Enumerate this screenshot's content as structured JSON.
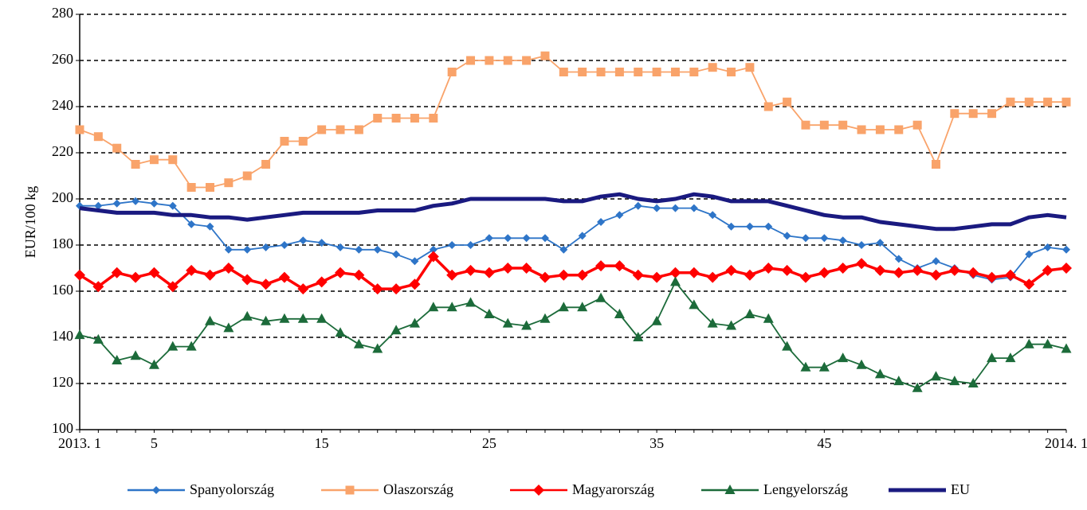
{
  "chart_data": {
    "type": "line",
    "y_label": "EUR/100 kg",
    "categories": [
      "2013. 1",
      null,
      null,
      null,
      "5",
      null,
      null,
      null,
      null,
      null,
      null,
      null,
      null,
      "15",
      null,
      null,
      null,
      null,
      null,
      null,
      null,
      null,
      "25",
      null,
      null,
      null,
      null,
      null,
      null,
      null,
      null,
      "35",
      null,
      null,
      null,
      null,
      null,
      null,
      null,
      null,
      "45",
      null,
      null,
      null,
      null,
      null,
      null,
      null,
      null,
      null,
      null,
      null,
      null,
      "2014. 1"
    ],
    "ylim": [
      100,
      280
    ],
    "yticks": [
      100,
      120,
      140,
      160,
      180,
      200,
      220,
      240,
      260,
      280
    ],
    "grid": true,
    "legend": "bottom",
    "series": [
      {
        "name": "Spanyolország",
        "color": "#2e75c8",
        "marker": "diamond",
        "values": [
          197,
          197,
          198,
          199,
          198,
          197,
          189,
          188,
          178,
          178,
          179,
          180,
          182,
          181,
          179,
          178,
          178,
          176,
          173,
          178,
          180,
          180,
          183,
          183,
          183,
          183,
          178,
          184,
          190,
          193,
          197,
          196,
          196,
          196,
          193,
          188,
          188,
          188,
          184,
          183,
          183,
          182,
          180,
          181,
          174,
          170,
          173,
          170,
          167,
          165,
          166,
          176,
          179,
          178
        ]
      },
      {
        "name": "Olaszország",
        "color": "#f9a36a",
        "marker": "square",
        "values": [
          230,
          227,
          222,
          215,
          217,
          217,
          205,
          205,
          207,
          210,
          215,
          225,
          225,
          230,
          230,
          230,
          235,
          235,
          235,
          235,
          255,
          260,
          260,
          260,
          260,
          262,
          255,
          255,
          255,
          255,
          255,
          255,
          255,
          255,
          257,
          255,
          257,
          240,
          242,
          232,
          232,
          232,
          230,
          230,
          230,
          232,
          215,
          237,
          237,
          237,
          242,
          242,
          242,
          242
        ]
      },
      {
        "name": "Magyarország",
        "color": "#ff0000",
        "marker": "bigdiamond",
        "values": [
          167,
          162,
          168,
          166,
          168,
          162,
          169,
          167,
          170,
          165,
          163,
          166,
          161,
          164,
          168,
          167,
          161,
          161,
          163,
          175,
          167,
          169,
          168,
          170,
          170,
          166,
          167,
          167,
          171,
          171,
          167,
          166,
          168,
          168,
          166,
          169,
          167,
          170,
          169,
          166,
          168,
          170,
          172,
          169,
          168,
          169,
          167,
          169,
          168,
          166,
          167,
          163,
          169,
          170
        ]
      },
      {
        "name": "Lengyelország",
        "color": "#1c6b3a",
        "marker": "triangle",
        "values": [
          141,
          139,
          130,
          132,
          128,
          136,
          136,
          147,
          144,
          149,
          147,
          148,
          148,
          148,
          142,
          137,
          135,
          143,
          146,
          153,
          153,
          155,
          150,
          146,
          145,
          148,
          153,
          153,
          157,
          150,
          140,
          147,
          164,
          154,
          146,
          145,
          150,
          148,
          136,
          127,
          127,
          131,
          128,
          124,
          121,
          118,
          123,
          121,
          120,
          131,
          131,
          137,
          137,
          135
        ]
      },
      {
        "name": "EU",
        "color": "#1a1a80",
        "marker": "none",
        "values": [
          196,
          195,
          194,
          194,
          194,
          193,
          193,
          192,
          192,
          191,
          192,
          193,
          194,
          194,
          194,
          194,
          195,
          195,
          195,
          197,
          198,
          200,
          200,
          200,
          200,
          200,
          199,
          199,
          201,
          202,
          200,
          199,
          200,
          202,
          201,
          199,
          199,
          199,
          197,
          195,
          193,
          192,
          192,
          190,
          189,
          188,
          187,
          187,
          188,
          189,
          189,
          192,
          193,
          192
        ]
      }
    ]
  }
}
